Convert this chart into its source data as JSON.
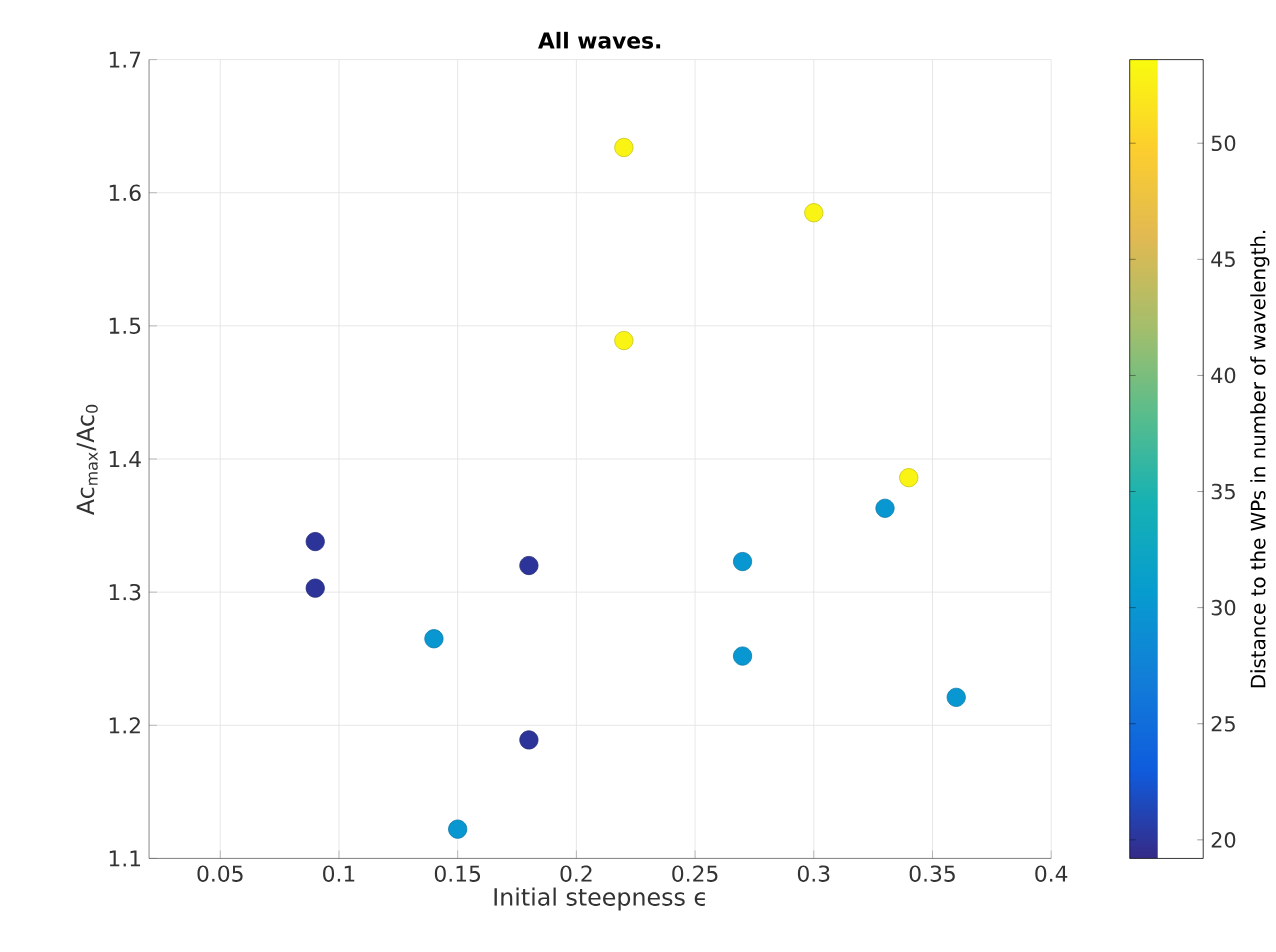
{
  "chart_data": {
    "type": "scatter",
    "title": "All waves.",
    "xlabel": "Initial steepness ϵ",
    "ylabel": "Ac$_{max}$/Ac$_{0}$",
    "clabel": "Distance to the WPs in number of wavelength.",
    "x": [
      0.09,
      0.09,
      0.18,
      0.18,
      0.14,
      0.15,
      0.27,
      0.27,
      0.33,
      0.36,
      0.22,
      0.22,
      0.3,
      0.34
    ],
    "values": [
      1.338,
      1.303,
      1.32,
      1.189,
      1.265,
      1.122,
      1.323,
      1.252,
      1.363,
      1.221,
      1.634,
      1.489,
      1.585,
      1.386
    ],
    "cvalues": [
      20,
      20,
      20,
      20,
      30,
      30,
      30,
      30,
      30,
      30,
      53,
      53,
      53,
      53
    ],
    "clim": [
      19.2,
      53.6
    ],
    "cticks": [
      20,
      25,
      30,
      35,
      40,
      45,
      50
    ],
    "xlim": [
      0.02,
      0.4
    ],
    "xticks": [
      0.05,
      0.1,
      0.15,
      0.2,
      0.25,
      0.3,
      0.35,
      0.4
    ],
    "ylim": [
      1.1,
      1.7
    ],
    "yticks": [
      1.1,
      1.2,
      1.3,
      1.4,
      1.5,
      1.6,
      1.7
    ],
    "grid": true,
    "marker": "circle"
  }
}
